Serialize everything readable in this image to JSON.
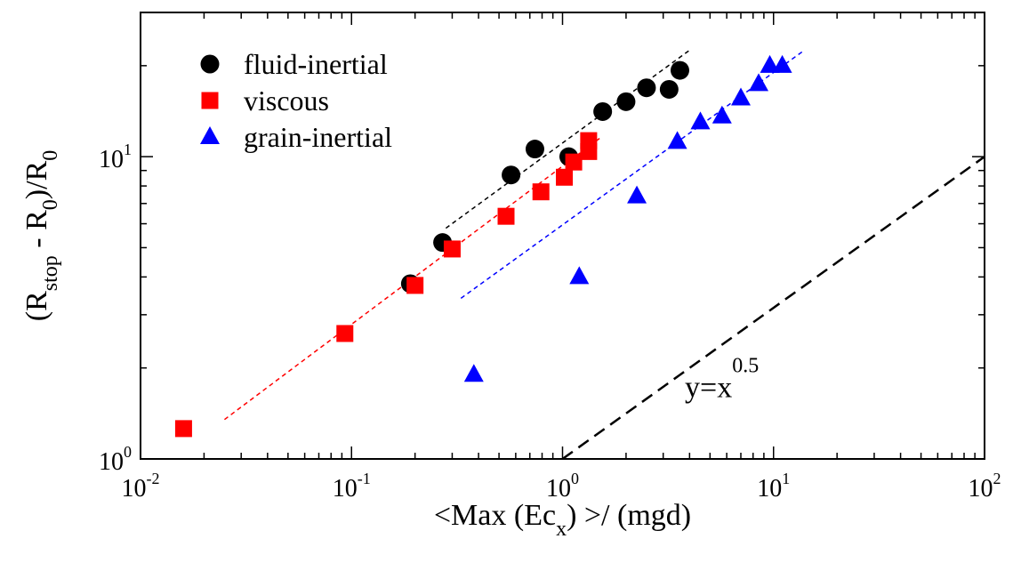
{
  "chart_data": {
    "type": "scatter",
    "xscale": "log",
    "yscale": "log",
    "xlim": [
      0.01,
      100
    ],
    "ylim": [
      1,
      30
    ],
    "grid": false,
    "legend_position": "top-left",
    "xlabel": {
      "main": "<Max (Ec",
      "sub": "x",
      "tail": ") >/ (mgd)"
    },
    "ylabel": {
      "pre": "(R",
      "sub1": "stop",
      "mid": " - R",
      "sub2": "0",
      "post": ")/R",
      "sub3": "0"
    },
    "x_ticks": [
      {
        "base": "10",
        "exp": "-2",
        "value": 0.01
      },
      {
        "base": "10",
        "exp": "-1",
        "value": 0.1
      },
      {
        "base": "10",
        "exp": "0",
        "value": 1
      },
      {
        "base": "10",
        "exp": "1",
        "value": 10
      },
      {
        "base": "10",
        "exp": "2",
        "value": 100
      }
    ],
    "y_ticks": [
      {
        "base": "10",
        "exp": "0",
        "value": 1
      },
      {
        "base": "10",
        "exp": "1",
        "value": 10
      }
    ],
    "series": [
      {
        "name": "fluid-inertial",
        "marker": "circle",
        "color": "#000000",
        "points": [
          {
            "x": 0.19,
            "y": 3.8
          },
          {
            "x": 0.27,
            "y": 5.2
          },
          {
            "x": 0.57,
            "y": 8.7
          },
          {
            "x": 0.74,
            "y": 10.6
          },
          {
            "x": 1.07,
            "y": 10.0
          },
          {
            "x": 1.55,
            "y": 14.1
          },
          {
            "x": 2.0,
            "y": 15.2
          },
          {
            "x": 2.5,
            "y": 16.9
          },
          {
            "x": 3.2,
            "y": 16.7
          },
          {
            "x": 3.6,
            "y": 19.3
          }
        ],
        "fit": {
          "color": "#000000",
          "from": [
            0.28,
            5.8
          ],
          "to": [
            4.0,
            22.5
          ]
        }
      },
      {
        "name": "viscous",
        "marker": "square",
        "color": "#ff0000",
        "points": [
          {
            "x": 0.016,
            "y": 1.26
          },
          {
            "x": 0.093,
            "y": 2.6
          },
          {
            "x": 0.2,
            "y": 3.75
          },
          {
            "x": 0.3,
            "y": 4.95
          },
          {
            "x": 0.54,
            "y": 6.35
          },
          {
            "x": 0.79,
            "y": 7.65
          },
          {
            "x": 1.02,
            "y": 8.55
          },
          {
            "x": 1.13,
            "y": 9.6
          },
          {
            "x": 1.33,
            "y": 10.4
          },
          {
            "x": 1.33,
            "y": 11.3
          }
        ],
        "fit": {
          "color": "#ff0000",
          "from": [
            0.025,
            1.35
          ],
          "to": [
            1.5,
            11.5
          ]
        }
      },
      {
        "name": "grain-inertial",
        "marker": "triangle",
        "color": "#0000ff",
        "points": [
          {
            "x": 0.38,
            "y": 1.9
          },
          {
            "x": 1.2,
            "y": 4.0
          },
          {
            "x": 2.25,
            "y": 7.4
          },
          {
            "x": 3.5,
            "y": 11.2
          },
          {
            "x": 4.5,
            "y": 13.0
          },
          {
            "x": 5.7,
            "y": 13.6
          },
          {
            "x": 7.0,
            "y": 15.6
          },
          {
            "x": 8.5,
            "y": 17.4
          },
          {
            "x": 9.6,
            "y": 20.0
          },
          {
            "x": 11.0,
            "y": 20.0
          }
        ],
        "fit": {
          "color": "#0000ff",
          "from": [
            0.33,
            3.4
          ],
          "to": [
            14.0,
            22.5
          ]
        }
      }
    ],
    "reference_line": {
      "label_base": "y=x",
      "label_exp": "0.5",
      "color": "#000000",
      "from": [
        1,
        1
      ],
      "to": [
        100,
        10
      ],
      "label_at": [
        3.8,
        1.6
      ]
    }
  }
}
